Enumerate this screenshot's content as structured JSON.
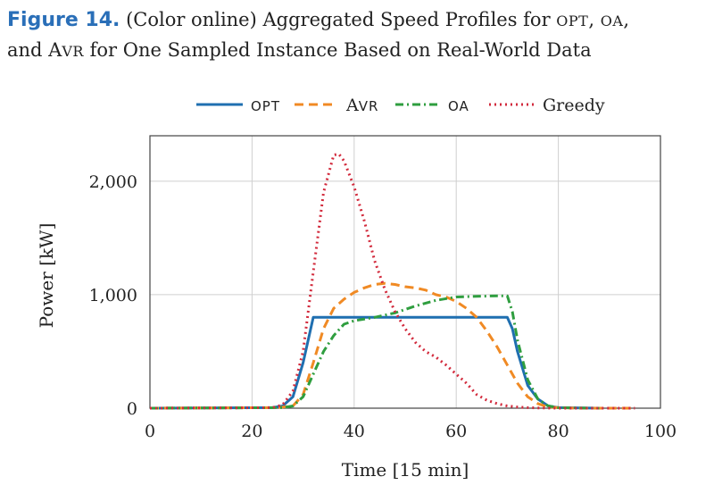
{
  "caption": {
    "label": "Figure 14.",
    "text_pre": "(Color online) Aggregated Speed Profiles for ",
    "opt": "OPT",
    "comma1": ", ",
    "oa": "OA",
    "comma2": ",",
    "text_line2_a": "and A",
    "avr_sc": "VR",
    "text_line2_b": " for One Sampled Instance Based on Real-World Data"
  },
  "chart_data": {
    "type": "line",
    "xlabel": "Time [15 min]",
    "ylabel": "Power [kW]",
    "xlim": [
      0,
      100
    ],
    "ylim": [
      0,
      2400
    ],
    "xticks": [
      0,
      20,
      40,
      60,
      80,
      100
    ],
    "xtick_labels": [
      "0",
      "20",
      "40",
      "60",
      "80",
      "100"
    ],
    "yticks": [
      0,
      1000,
      2000
    ],
    "ytick_labels": [
      "0",
      "1,000",
      "2,000"
    ],
    "grid": true,
    "legend_position": "top-center",
    "series": [
      {
        "name": "OPT",
        "color": "#1f6fb0",
        "dash": "solid",
        "x": [
          0,
          24,
          26,
          28,
          30,
          32,
          40,
          50,
          60,
          70,
          71,
          72,
          74,
          76,
          78,
          80,
          88
        ],
        "y": [
          0,
          5,
          20,
          100,
          400,
          800,
          800,
          800,
          800,
          800,
          700,
          500,
          200,
          80,
          20,
          5,
          0
        ]
      },
      {
        "name": "AVR",
        "color": "#f08a24",
        "dash": "dashed",
        "x": [
          0,
          25,
          28,
          30,
          32,
          34,
          36,
          38,
          40,
          42,
          44,
          46,
          48,
          50,
          52,
          54,
          56,
          58,
          60,
          62,
          64,
          66,
          68,
          70,
          72,
          74,
          76,
          78,
          80,
          82,
          84,
          95
        ],
        "y": [
          0,
          5,
          20,
          120,
          400,
          700,
          880,
          960,
          1020,
          1060,
          1090,
          1100,
          1090,
          1070,
          1060,
          1040,
          1000,
          980,
          940,
          880,
          800,
          680,
          540,
          380,
          220,
          100,
          40,
          10,
          5,
          2,
          0,
          0
        ]
      },
      {
        "name": "OA",
        "color": "#2f9e3f",
        "dash": "dashdot",
        "x": [
          0,
          26,
          28,
          30,
          32,
          34,
          36,
          38,
          40,
          44,
          48,
          52,
          56,
          60,
          64,
          68,
          70,
          71,
          72,
          74,
          76,
          78,
          80,
          88
        ],
        "y": [
          0,
          5,
          20,
          100,
          300,
          500,
          640,
          740,
          770,
          800,
          840,
          900,
          950,
          980,
          985,
          990,
          990,
          850,
          600,
          250,
          80,
          20,
          5,
          0
        ]
      },
      {
        "name": "Greedy",
        "color": "#d22a3c",
        "dash": "dotted",
        "x": [
          0,
          24,
          26,
          28,
          30,
          32,
          34,
          36,
          37,
          38,
          40,
          42,
          44,
          46,
          48,
          50,
          52,
          54,
          56,
          58,
          60,
          62,
          64,
          66,
          68,
          70,
          72,
          74,
          76,
          80,
          95
        ],
        "y": [
          0,
          5,
          30,
          150,
          500,
          1200,
          1900,
          2230,
          2240,
          2180,
          1950,
          1650,
          1300,
          1050,
          850,
          700,
          580,
          500,
          450,
          380,
          300,
          220,
          120,
          70,
          40,
          20,
          10,
          5,
          2,
          0,
          0
        ]
      }
    ]
  }
}
